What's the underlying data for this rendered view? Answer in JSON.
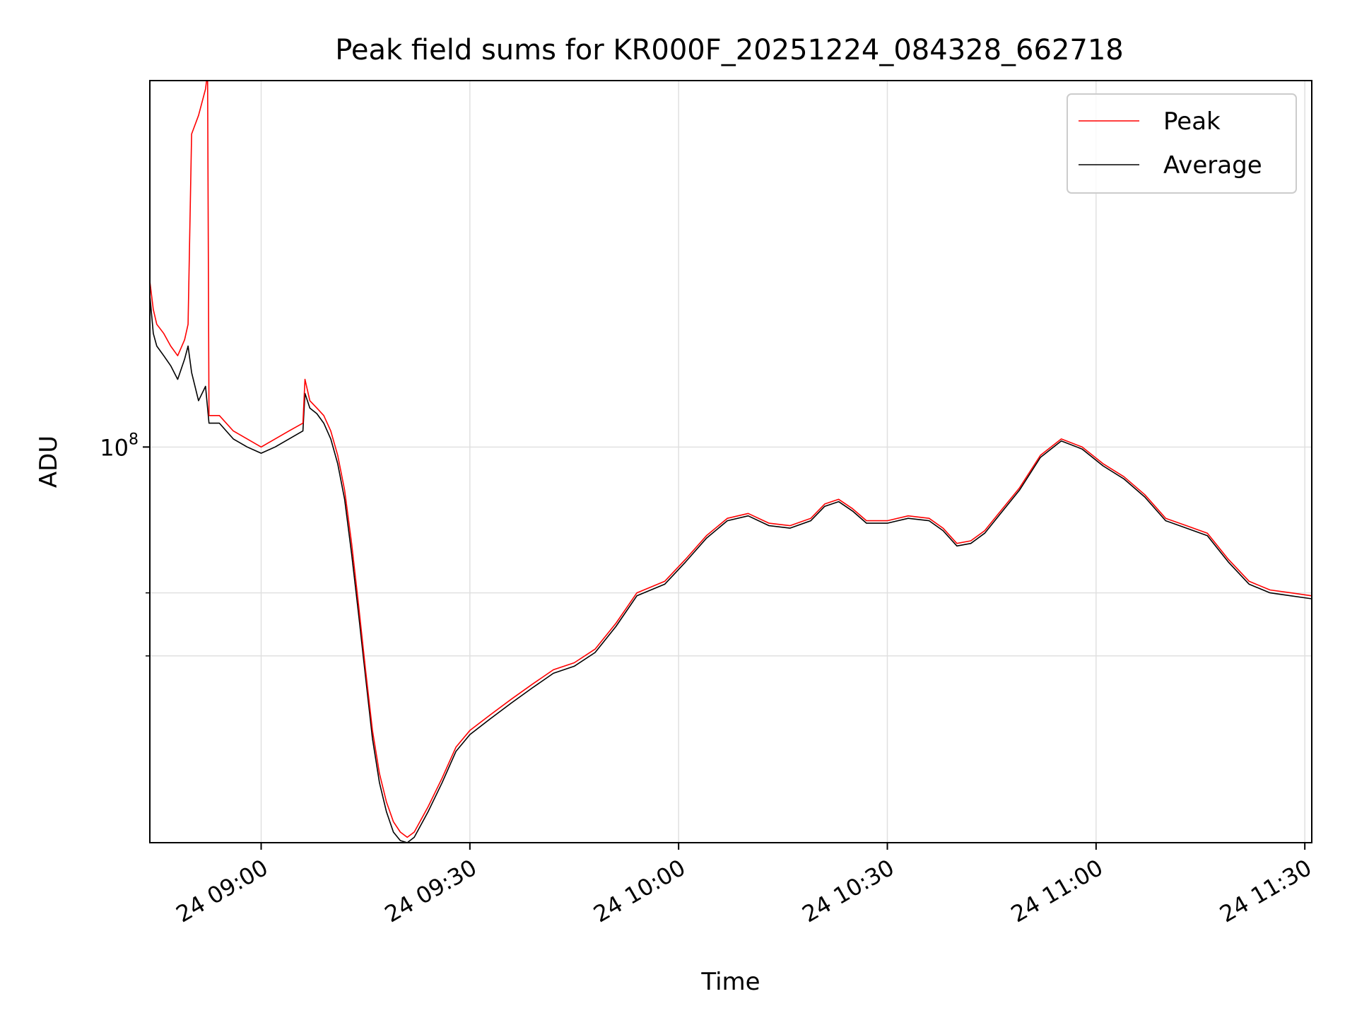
{
  "chart_data": {
    "type": "line",
    "title": "Peak field sums for KR000F_20251224_084328_662718",
    "xlabel": "Time",
    "ylabel": "ADU",
    "y_scale": "log",
    "x_range": [
      "2025-12-24 08:44",
      "2025-12-24 11:31"
    ],
    "y_range": [
      38000000,
      245000000
    ],
    "x_ticks": [
      {
        "time": "09:00",
        "label": "24 09:00"
      },
      {
        "time": "09:30",
        "label": "24 09:30"
      },
      {
        "time": "10:00",
        "label": "24 10:00"
      },
      {
        "time": "10:30",
        "label": "24 10:30"
      },
      {
        "time": "11:00",
        "label": "24 11:00"
      },
      {
        "time": "11:30",
        "label": "24 11:30"
      }
    ],
    "y_major_ticks": [
      {
        "value": 100000000,
        "label_base": "10",
        "label_exp": "8"
      }
    ],
    "y_minor_ticks": [
      60000000,
      70000000
    ],
    "grid": true,
    "legend": {
      "placement": "top-right",
      "entries": [
        "Peak",
        "Average"
      ]
    },
    "series": [
      {
        "name": "Peak",
        "color": "#ff0000",
        "points": [
          [
            "08:44",
            150000000
          ],
          [
            "08:44.5",
            140000000
          ],
          [
            "08:45",
            135000000
          ],
          [
            "08:46",
            132000000
          ],
          [
            "08:47",
            128000000
          ],
          [
            "08:48",
            125000000
          ],
          [
            "08:49",
            130000000
          ],
          [
            "08:49.5",
            135000000
          ],
          [
            "08:50",
            215000000
          ],
          [
            "08:51",
            225000000
          ],
          [
            "08:52",
            240000000
          ],
          [
            "08:52.3",
            250000000
          ],
          [
            "08:52.5",
            108000000
          ],
          [
            "08:54",
            108000000
          ],
          [
            "08:56",
            104000000
          ],
          [
            "08:58",
            102000000
          ],
          [
            "09:00",
            100000000
          ],
          [
            "09:02",
            102000000
          ],
          [
            "09:04",
            104000000
          ],
          [
            "09:06",
            106000000
          ],
          [
            "09:06.3",
            118000000
          ],
          [
            "09:07",
            112000000
          ],
          [
            "09:08",
            110000000
          ],
          [
            "09:09",
            108000000
          ],
          [
            "09:10",
            104000000
          ],
          [
            "09:11",
            98000000
          ],
          [
            "09:12",
            90000000
          ],
          [
            "09:13",
            79000000
          ],
          [
            "09:14",
            68000000
          ],
          [
            "09:15",
            58000000
          ],
          [
            "09:16",
            50000000
          ],
          [
            "09:17",
            45000000
          ],
          [
            "09:18",
            42000000
          ],
          [
            "09:19",
            40000000
          ],
          [
            "09:20",
            39000000
          ],
          [
            "09:21",
            38500000
          ],
          [
            "09:22",
            39000000
          ],
          [
            "09:24",
            41500000
          ],
          [
            "09:26",
            44500000
          ],
          [
            "09:28",
            48000000
          ],
          [
            "09:30",
            50000000
          ],
          [
            "09:33",
            52000000
          ],
          [
            "09:36",
            54000000
          ],
          [
            "09:39",
            56000000
          ],
          [
            "09:42",
            58000000
          ],
          [
            "09:45",
            59000000
          ],
          [
            "09:48",
            61000000
          ],
          [
            "09:51",
            65000000
          ],
          [
            "09:54",
            70000000
          ],
          [
            "09:58",
            72000000
          ],
          [
            "10:01",
            76000000
          ],
          [
            "10:04",
            80500000
          ],
          [
            "10:07",
            84000000
          ],
          [
            "10:10",
            85000000
          ],
          [
            "10:13",
            83000000
          ],
          [
            "10:16",
            82500000
          ],
          [
            "10:19",
            84000000
          ],
          [
            "10:21",
            87000000
          ],
          [
            "10:23",
            88000000
          ],
          [
            "10:25",
            86000000
          ],
          [
            "10:27",
            83500000
          ],
          [
            "10:30",
            83500000
          ],
          [
            "10:33",
            84500000
          ],
          [
            "10:36",
            84000000
          ],
          [
            "10:38",
            82000000
          ],
          [
            "10:40",
            79000000
          ],
          [
            "10:42",
            79500000
          ],
          [
            "10:44",
            81500000
          ],
          [
            "10:46",
            85000000
          ],
          [
            "10:49",
            90500000
          ],
          [
            "10:52",
            98000000
          ],
          [
            "10:55",
            102000000
          ],
          [
            "10:58",
            100000000
          ],
          [
            "11:01",
            96000000
          ],
          [
            "11:04",
            93000000
          ],
          [
            "11:07",
            89000000
          ],
          [
            "11:10",
            84000000
          ],
          [
            "11:13",
            82500000
          ],
          [
            "11:16",
            81000000
          ],
          [
            "11:19",
            76000000
          ],
          [
            "11:22",
            72000000
          ],
          [
            "11:25",
            70500000
          ],
          [
            "11:28",
            70000000
          ],
          [
            "11:31",
            69500000
          ]
        ]
      },
      {
        "name": "Average",
        "color": "#000000",
        "points": [
          [
            "08:44",
            145000000
          ],
          [
            "08:44.5",
            132000000
          ],
          [
            "08:45",
            128000000
          ],
          [
            "08:46",
            125000000
          ],
          [
            "08:47",
            122000000
          ],
          [
            "08:48",
            118000000
          ],
          [
            "08:49",
            124000000
          ],
          [
            "08:49.5",
            128000000
          ],
          [
            "08:50",
            120000000
          ],
          [
            "08:51",
            112000000
          ],
          [
            "08:52",
            116000000
          ],
          [
            "08:52.3",
            110000000
          ],
          [
            "08:52.5",
            106000000
          ],
          [
            "08:54",
            106000000
          ],
          [
            "08:56",
            102000000
          ],
          [
            "08:58",
            100000000
          ],
          [
            "09:00",
            98500000
          ],
          [
            "09:02",
            100000000
          ],
          [
            "09:04",
            102000000
          ],
          [
            "09:06",
            104000000
          ],
          [
            "09:06.3",
            114000000
          ],
          [
            "09:07",
            110000000
          ],
          [
            "09:08",
            108500000
          ],
          [
            "09:09",
            106000000
          ],
          [
            "09:10",
            102000000
          ],
          [
            "09:11",
            96000000
          ],
          [
            "09:12",
            88000000
          ],
          [
            "09:13",
            77000000
          ],
          [
            "09:14",
            66500000
          ],
          [
            "09:15",
            57000000
          ],
          [
            "09:16",
            49000000
          ],
          [
            "09:17",
            44000000
          ],
          [
            "09:18",
            41000000
          ],
          [
            "09:19",
            39000000
          ],
          [
            "09:20",
            38200000
          ],
          [
            "09:21",
            38000000
          ],
          [
            "09:22",
            38500000
          ],
          [
            "09:24",
            41000000
          ],
          [
            "09:26",
            44000000
          ],
          [
            "09:28",
            47500000
          ],
          [
            "09:30",
            49500000
          ],
          [
            "09:33",
            51500000
          ],
          [
            "09:36",
            53500000
          ],
          [
            "09:39",
            55500000
          ],
          [
            "09:42",
            57500000
          ],
          [
            "09:45",
            58500000
          ],
          [
            "09:48",
            60500000
          ],
          [
            "09:51",
            64500000
          ],
          [
            "09:54",
            69500000
          ],
          [
            "09:58",
            71500000
          ],
          [
            "10:01",
            75500000
          ],
          [
            "10:04",
            80000000
          ],
          [
            "10:07",
            83500000
          ],
          [
            "10:10",
            84500000
          ],
          [
            "10:13",
            82500000
          ],
          [
            "10:16",
            82000000
          ],
          [
            "10:19",
            83500000
          ],
          [
            "10:21",
            86500000
          ],
          [
            "10:23",
            87500000
          ],
          [
            "10:25",
            85500000
          ],
          [
            "10:27",
            83000000
          ],
          [
            "10:30",
            83000000
          ],
          [
            "10:33",
            84000000
          ],
          [
            "10:36",
            83500000
          ],
          [
            "10:38",
            81500000
          ],
          [
            "10:40",
            78500000
          ],
          [
            "10:42",
            79000000
          ],
          [
            "10:44",
            81000000
          ],
          [
            "10:46",
            84500000
          ],
          [
            "10:49",
            90000000
          ],
          [
            "10:52",
            97500000
          ],
          [
            "10:55",
            101500000
          ],
          [
            "10:58",
            99500000
          ],
          [
            "11:01",
            95500000
          ],
          [
            "11:04",
            92500000
          ],
          [
            "11:07",
            88500000
          ],
          [
            "11:10",
            83500000
          ],
          [
            "11:13",
            82000000
          ],
          [
            "11:16",
            80500000
          ],
          [
            "11:19",
            75500000
          ],
          [
            "11:22",
            71500000
          ],
          [
            "11:25",
            70000000
          ],
          [
            "11:28",
            69500000
          ],
          [
            "11:31",
            69000000
          ]
        ]
      }
    ]
  }
}
